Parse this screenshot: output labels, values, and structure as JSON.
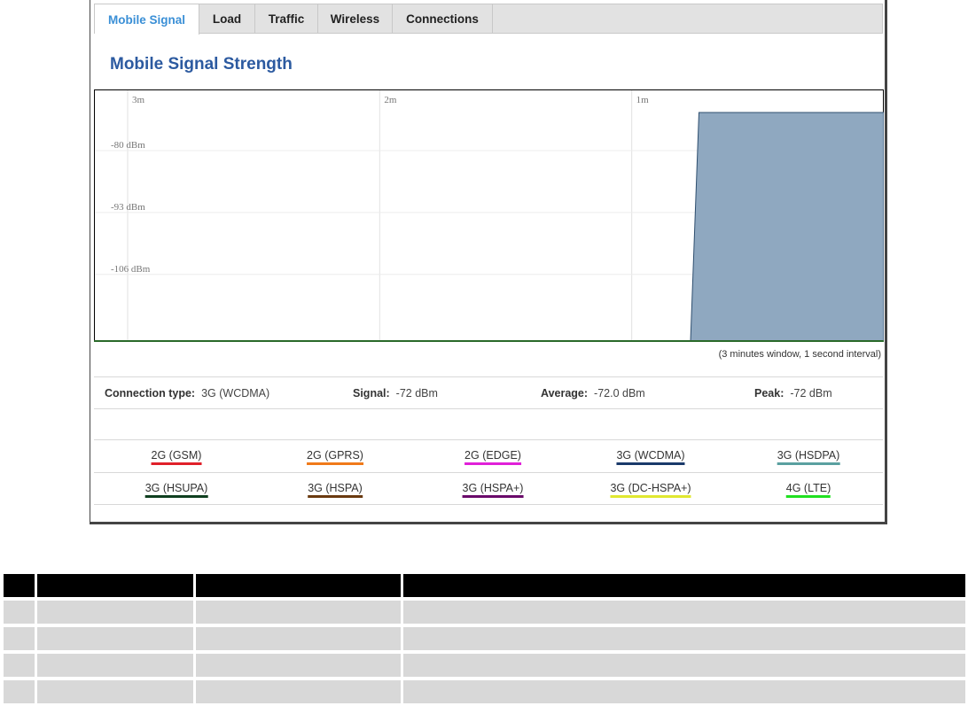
{
  "tabs": [
    {
      "label": "Mobile Signal",
      "active": true
    },
    {
      "label": "Load",
      "active": false
    },
    {
      "label": "Traffic",
      "active": false
    },
    {
      "label": "Wireless",
      "active": false
    },
    {
      "label": "Connections",
      "active": false
    }
  ],
  "page_title": "Mobile Signal Strength",
  "chart_data": {
    "type": "area",
    "x_ticks": [
      "3m",
      "2m",
      "1m"
    ],
    "y_ticks": [
      "-80 dBm",
      "-93 dBm",
      "-106 dBm"
    ],
    "x_range_seconds_ago": [
      180,
      0
    ],
    "y_range_dbm": [
      -120,
      -72
    ],
    "series": [
      {
        "color": "#8fa8c0",
        "points": [
          [
            180,
            -120
          ],
          [
            46,
            -120
          ],
          [
            44,
            -72
          ],
          [
            0,
            -72
          ]
        ]
      }
    ]
  },
  "window_note": "(3 minutes window, 1 second interval)",
  "stats": {
    "connection_type_label": "Connection type:",
    "connection_type_value": "3G (WCDMA)",
    "signal_label": "Signal:",
    "signal_value": "-72 dBm",
    "average_label": "Average:",
    "average_value": "-72.0 dBm",
    "peak_label": "Peak:",
    "peak_value": "-72 dBm"
  },
  "legend": [
    {
      "label": "2G (GSM)",
      "color": "#e0202a"
    },
    {
      "label": "2G (GPRS)",
      "color": "#f07a1a"
    },
    {
      "label": "2G (EDGE)",
      "color": "#e020d8"
    },
    {
      "label": "3G (WCDMA)",
      "color": "#1a3a6a"
    },
    {
      "label": "3G (HSDPA)",
      "color": "#5aa0a0"
    },
    {
      "label": "3G (HSUPA)",
      "color": "#0f3f1f"
    },
    {
      "label": "3G (HSPA)",
      "color": "#6a3a10"
    },
    {
      "label": "3G (HSPA+)",
      "color": "#6a0a6a"
    },
    {
      "label": "3G (DC-HSPA+)",
      "color": "#e0e830"
    },
    {
      "label": "4G (LTE)",
      "color": "#20e020"
    }
  ],
  "table": {
    "colors": {
      "header": "#000000",
      "row": "#d8d8d8"
    },
    "row_count": 4
  }
}
